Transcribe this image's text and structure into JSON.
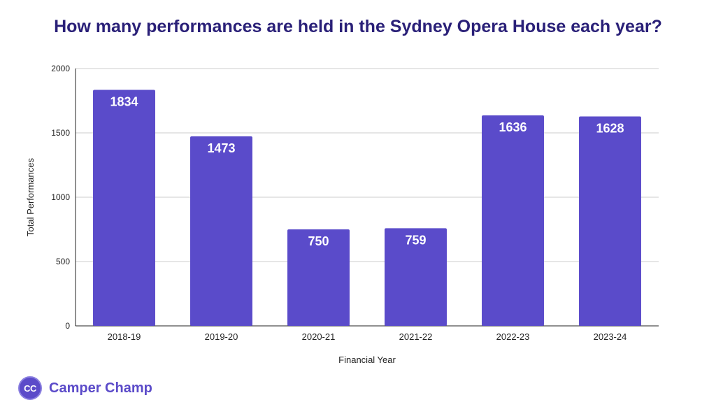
{
  "brand": {
    "logo_text": "CC",
    "name": "Camper Champ",
    "color": "#5b4bc9"
  },
  "chart_data": {
    "type": "bar",
    "title": "How many performances are held in the Sydney Opera House each year?",
    "xlabel": "Financial Year",
    "ylabel": "Total Performances",
    "categories": [
      "2018-19",
      "2019-20",
      "2020-21",
      "2021-22",
      "2022-23",
      "2023-24"
    ],
    "values": [
      1834,
      1473,
      750,
      759,
      1636,
      1628
    ],
    "ylim": [
      0,
      2000
    ],
    "yticks": [
      0,
      500,
      1000,
      1500,
      2000
    ],
    "data_labels": true,
    "grid": true,
    "legend": "none",
    "bar_color": "#5a4bca",
    "title_color": "#2a2078"
  }
}
